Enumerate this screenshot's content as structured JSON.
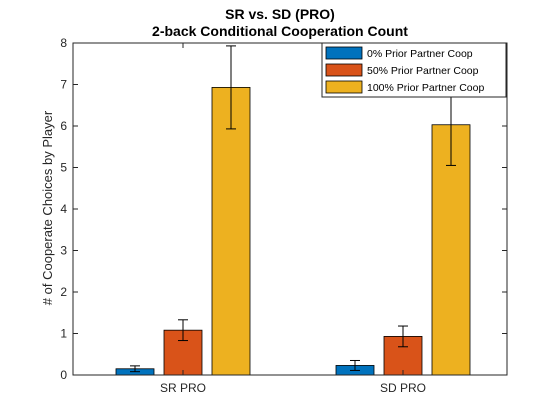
{
  "chart_data": {
    "type": "bar",
    "title": "SR vs. SD (PRO)",
    "subtitle": "2-back Conditional Cooperation Count",
    "xlabel": "",
    "ylabel": "# of Cooperate Choices by Player",
    "ylim": [
      0,
      8
    ],
    "yticks": [
      0,
      1,
      2,
      3,
      4,
      5,
      6,
      7,
      8
    ],
    "categories": [
      "SR PRO",
      "SD PRO"
    ],
    "grid": false,
    "legend_position": "top-right",
    "series": [
      {
        "name": "0% Prior Partner Coop",
        "color": "#0072BD",
        "values": [
          0.15,
          0.23
        ],
        "error": [
          0.07,
          0.12
        ]
      },
      {
        "name": "50% Prior Partner Coop",
        "color": "#D95319",
        "values": [
          1.08,
          0.93
        ],
        "error": [
          0.25,
          0.25
        ]
      },
      {
        "name": "100% Prior Partner Coop",
        "color": "#EDB120",
        "values": [
          6.93,
          6.03
        ],
        "error": [
          1.0,
          0.98
        ]
      }
    ]
  }
}
